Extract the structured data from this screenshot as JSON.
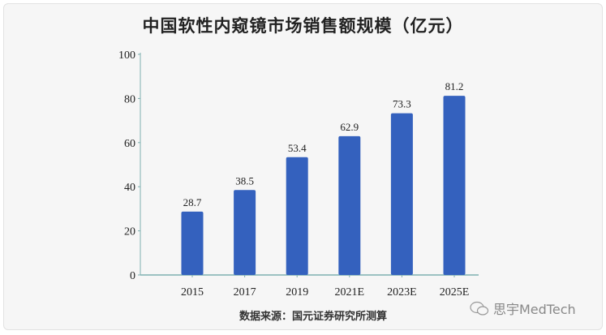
{
  "chart_data": {
    "type": "bar",
    "title": "中国软性内窥镜市场销售额规模（亿元）",
    "categories": [
      "2015",
      "2017",
      "2019",
      "2021E",
      "2023E",
      "2025E"
    ],
    "values": [
      28.7,
      38.5,
      53.4,
      62.9,
      73.3,
      81.2
    ],
    "data_labels": [
      "28.7",
      "38.5",
      "53.4",
      "62.9",
      "73.3",
      "81.2"
    ],
    "ylim": [
      0,
      100
    ],
    "yticks": [
      "0",
      "20",
      "40",
      "60",
      "80",
      "100"
    ],
    "xlabel": "",
    "ylabel": "",
    "grid": false,
    "bar_color": "#3461be",
    "axis_color": "#7fb0b0"
  },
  "source": "数据来源：国元证券研究所测算",
  "watermark": {
    "text": "思宇MedTech",
    "icon": "wechat-icon"
  }
}
